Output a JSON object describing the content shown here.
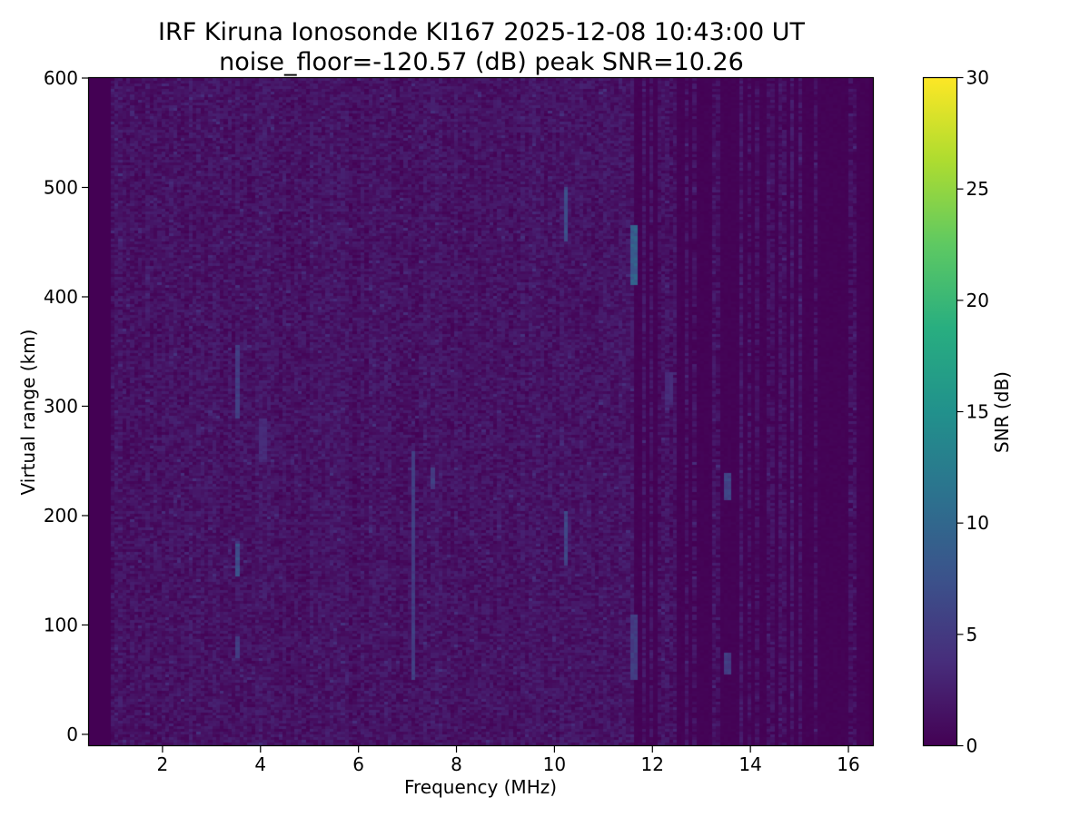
{
  "chart_data": {
    "type": "heatmap",
    "title": "IRF Kiruna Ionosonde KI167 2025-12-08 10:43:00  UT",
    "subtitle": "noise_floor=-120.57 (dB) peak SNR=10.26",
    "xlabel": "Frequency (MHz)",
    "ylabel": "Virtual range (km)",
    "xlim": [
      0.5,
      16.5
    ],
    "ylim": [
      -10,
      600
    ],
    "x_ticks": [
      "2",
      "4",
      "6",
      "8",
      "10",
      "12",
      "14",
      "16"
    ],
    "y_ticks": [
      "0",
      "100",
      "200",
      "300",
      "400",
      "500",
      "600"
    ],
    "colorbar": {
      "label": "SNR (dB)",
      "colormap": "viridis",
      "range": [
        0,
        30
      ],
      "ticks": [
        "0",
        "5",
        "10",
        "15",
        "20",
        "25",
        "30"
      ]
    },
    "background_level_db": 1.5,
    "frequency_band_start_mhz": 0.95,
    "frequency_band_end_mhz": 16.45,
    "sparse_region_start_mhz": 11.6,
    "features": [
      {
        "freq_mhz": 3.5,
        "range_km": [
          145,
          175
        ],
        "snr_db": 8
      },
      {
        "freq_mhz": 3.5,
        "range_km": [
          290,
          355
        ],
        "snr_db": 6
      },
      {
        "freq_mhz": 3.5,
        "range_km": [
          70,
          90
        ],
        "snr_db": 6
      },
      {
        "freq_mhz": 7.1,
        "range_km": [
          50,
          260
        ],
        "snr_db": 6
      },
      {
        "freq_mhz": 7.5,
        "range_km": [
          225,
          245
        ],
        "snr_db": 6
      },
      {
        "freq_mhz": 10.2,
        "range_km": [
          450,
          500
        ],
        "snr_db": 8
      },
      {
        "freq_mhz": 10.2,
        "range_km": [
          155,
          205
        ],
        "snr_db": 7
      },
      {
        "freq_mhz": 11.6,
        "range_km": [
          410,
          465
        ],
        "snr_db": 10.26
      },
      {
        "freq_mhz": 11.6,
        "range_km": [
          50,
          110
        ],
        "snr_db": 6
      },
      {
        "freq_mhz": 13.5,
        "range_km": [
          215,
          240
        ],
        "snr_db": 7
      },
      {
        "freq_mhz": 13.5,
        "range_km": [
          55,
          75
        ],
        "snr_db": 6
      },
      {
        "freq_mhz": 4.0,
        "range_km": [
          250,
          290
        ],
        "snr_db": 4
      },
      {
        "freq_mhz": 12.3,
        "range_km": [
          300,
          330
        ],
        "snr_db": 4
      }
    ]
  }
}
